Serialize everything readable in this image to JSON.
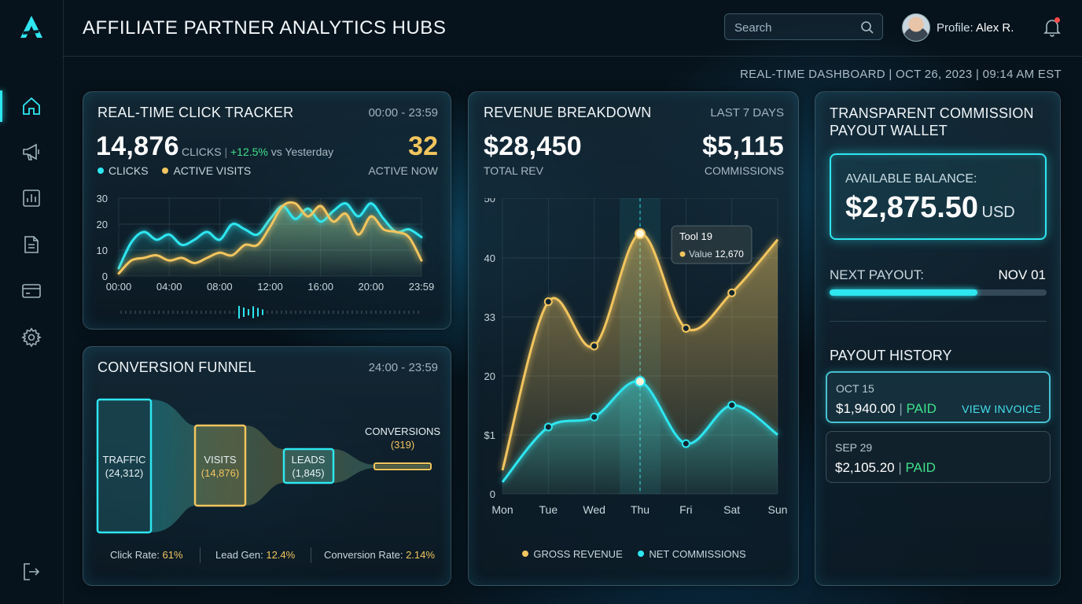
{
  "header": {
    "title": "AFFILIATE PARTNER ANALYTICS HUBS",
    "search_placeholder": "Search",
    "profile_prefix": "Profile:",
    "profile_name": "Alex R.",
    "subheader": "REAL-TIME DASHBOARD | OCT 26, 2023 | 09:14 AM EST"
  },
  "sidebar": {
    "items": [
      {
        "icon": "home-icon",
        "active": true
      },
      {
        "icon": "megaphone-icon",
        "active": false
      },
      {
        "icon": "bar-chart-icon",
        "active": false
      },
      {
        "icon": "document-icon",
        "active": false
      },
      {
        "icon": "credit-card-icon",
        "active": false
      },
      {
        "icon": "gear-icon",
        "active": false
      }
    ],
    "logout_icon": "logout-icon"
  },
  "click_tracker": {
    "title": "REAL-TIME CLICK TRACKER",
    "range": "00:00 - 23:59",
    "clicks_value": "14,876",
    "clicks_label": "CLICKS",
    "change": "+12.5%",
    "change_suffix": "vs Yesterday",
    "active_value": "32",
    "active_label": "ACTIVE NOW",
    "legend_clicks": "CLICKS",
    "legend_visits": "ACTIVE VISITS"
  },
  "funnel": {
    "title": "CONVERSION FUNNEL",
    "range": "24:00 - 23:59",
    "stages": [
      {
        "label": "TRAFFIC",
        "value": "(24,312)"
      },
      {
        "label": "VISITS",
        "value": "(14,876)"
      },
      {
        "label": "LEADS",
        "value": "(1,845)"
      },
      {
        "label": "CONVERSIONS",
        "value": "(319)"
      }
    ],
    "stats": [
      {
        "label": "Click Rate:",
        "value": "61%"
      },
      {
        "label": "Lead Gen:",
        "value": "12.4%"
      },
      {
        "label": "Conversion Rate:",
        "value": "2.14%"
      }
    ]
  },
  "revenue": {
    "title": "REVENUE BREAKDOWN",
    "range": "LAST 7 DAYS",
    "total_value": "$28,450",
    "total_label": "TOTAL REV",
    "commission_value": "$5,115",
    "commission_label": "COMMISSIONS",
    "tooltip_title": "Tool 19",
    "tooltip_label": "Value",
    "tooltip_value": "12,670",
    "legend_gross": "GROSS REVENUE",
    "legend_net": "NET COMMISSIONS"
  },
  "wallet": {
    "title_line1": "TRANSPARENT COMMISSION",
    "title_line2": "PAYOUT WALLET",
    "balance_label": "AVAILABLE BALANCE:",
    "balance_value": "$2,875.50",
    "balance_currency": "USD",
    "next_payout_label": "NEXT PAYOUT:",
    "next_payout_date": "NOV 01",
    "next_payout_progress": 0.68,
    "history_title": "PAYOUT HISTORY",
    "history": [
      {
        "date": "OCT 15",
        "amount": "$1,940.00",
        "status": "PAID",
        "action": "VIEW INVOICE"
      },
      {
        "date": "SEP 29",
        "amount": "$2,105.20",
        "status": "PAID",
        "action": ""
      }
    ]
  },
  "colors": {
    "cyan": "#2ee6f0",
    "gold": "#f2c55e",
    "green": "#3fe08a"
  },
  "chart_data": [
    {
      "type": "line",
      "name_ref": "click-tracker",
      "x": [
        "00:00",
        "01:00",
        "02:00",
        "03:00",
        "04:00",
        "05:00",
        "06:00",
        "07:00",
        "08:00",
        "09:00",
        "10:00",
        "11:00",
        "12:00",
        "13:00",
        "14:00",
        "15:00",
        "16:00",
        "17:00",
        "18:00",
        "19:00",
        "20:00",
        "21:00",
        "22:00",
        "23:00",
        "23:59"
      ],
      "x_ticks": [
        "00:00",
        "04:00",
        "08:00",
        "12:00",
        "16:00",
        "20:00",
        "23:59"
      ],
      "y_ticks": [
        0,
        10,
        20,
        30
      ],
      "ylim": [
        0,
        30
      ],
      "series": [
        {
          "name": "CLICKS",
          "color": "#2ee6f0",
          "values": [
            3,
            13,
            17,
            14,
            16,
            12,
            14,
            17,
            14,
            20,
            18,
            16,
            22,
            27,
            22,
            26,
            21,
            25,
            28,
            23,
            28,
            22,
            17,
            18,
            15
          ]
        },
        {
          "name": "ACTIVE VISITS",
          "color": "#f2c55e",
          "values": [
            1,
            6,
            7,
            8,
            6,
            7,
            5,
            7,
            9,
            8,
            12,
            12,
            19,
            27,
            28,
            23,
            27,
            21,
            24,
            16,
            23,
            18,
            17,
            15,
            6
          ]
        }
      ]
    },
    {
      "type": "area",
      "name_ref": "revenue-breakdown",
      "categories": [
        "Mon",
        "Tue",
        "Wed",
        "Thu",
        "Fri",
        "Sat",
        "Sun"
      ],
      "y_ticks": [
        "0",
        "$1",
        "20",
        "33",
        "40",
        "50"
      ],
      "ylim": [
        0,
        50
      ],
      "highlight_category": "Thu",
      "series": [
        {
          "name": "GROSS REVENUE",
          "color": "#f2c55e",
          "values": [
            4,
            32.5,
            25,
            44,
            28,
            34,
            43
          ]
        },
        {
          "name": "NET COMMISSIONS",
          "color": "#2ee6f0",
          "values": [
            2,
            11.3,
            13,
            19,
            8.5,
            15,
            10
          ]
        }
      ]
    }
  ]
}
